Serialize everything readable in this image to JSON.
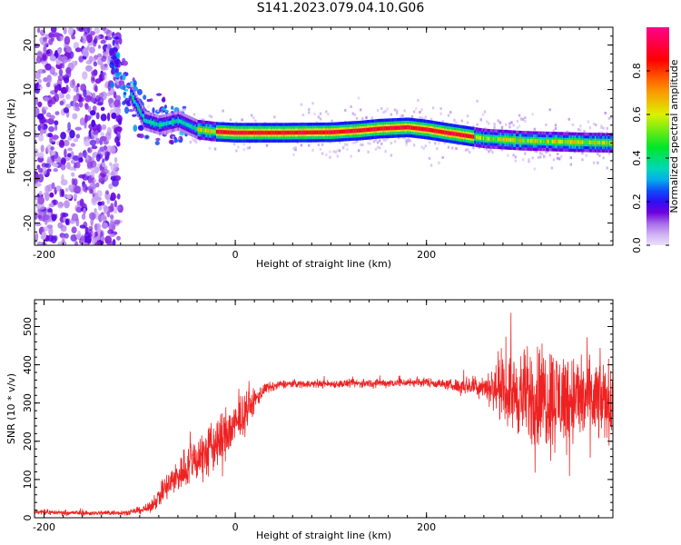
{
  "title": "S141.2023.079.04.10.G06",
  "colors": {
    "snr_line": "#ee2222",
    "axis": "#000000"
  },
  "chart_data": [
    {
      "type": "heatmap",
      "xlabel": "Height of straight line (km)",
      "ylabel": "Frequency (Hz)",
      "xlim": [
        -210,
        395
      ],
      "ylim": [
        -25,
        24
      ],
      "xticks": [
        -200,
        0,
        200
      ],
      "yticks": [
        -20,
        -10,
        0,
        10,
        20
      ],
      "colorbar": {
        "label": "Normalized spectral amplitude",
        "range": [
          0,
          1
        ],
        "ticks": [
          0.0,
          0.2,
          0.4,
          0.6,
          0.8
        ]
      },
      "ridge": [
        [
          -125,
          16
        ],
        [
          -110,
          9
        ],
        [
          -95,
          3
        ],
        [
          -80,
          2
        ],
        [
          -60,
          3
        ],
        [
          -40,
          1
        ],
        [
          -20,
          0.5
        ],
        [
          0,
          0.3
        ],
        [
          50,
          0.3
        ],
        [
          100,
          0.4
        ],
        [
          130,
          0.8
        ],
        [
          150,
          1.2
        ],
        [
          180,
          1.5
        ],
        [
          200,
          1.0
        ],
        [
          220,
          0.3
        ],
        [
          260,
          -1.0
        ],
        [
          300,
          -1.5
        ],
        [
          350,
          -1.8
        ],
        [
          395,
          -2.0
        ]
      ]
    },
    {
      "type": "line",
      "xlabel": "Height of straight line (km)",
      "ylabel": "SNR (10 * v/v)",
      "xlim": [
        -210,
        395
      ],
      "ylim": [
        0,
        570
      ],
      "xticks": [
        -200,
        0,
        200
      ],
      "yticks": [
        0,
        100,
        200,
        300,
        400,
        500
      ],
      "series": [
        {
          "envelope": [
            [
              -210,
              15
            ],
            [
              -150,
              12
            ],
            [
              -110,
              14
            ],
            [
              -90,
              25
            ],
            [
              -75,
              70
            ],
            [
              -60,
              110
            ],
            [
              -45,
              150
            ],
            [
              -30,
              170
            ],
            [
              -15,
              205
            ],
            [
              0,
              240
            ],
            [
              15,
              290
            ],
            [
              30,
              335
            ],
            [
              50,
              350
            ],
            [
              100,
              350
            ],
            [
              150,
              352
            ],
            [
              200,
              355
            ],
            [
              230,
              345
            ],
            [
              260,
              345
            ],
            [
              280,
              330
            ],
            [
              300,
              320
            ],
            [
              330,
              315
            ],
            [
              360,
              310
            ],
            [
              395,
              305
            ]
          ],
          "noise": [
            [
              -210,
              8
            ],
            [
              -110,
              8
            ],
            [
              -90,
              15
            ],
            [
              -70,
              50
            ],
            [
              -50,
              70
            ],
            [
              -30,
              90
            ],
            [
              -10,
              90
            ],
            [
              10,
              60
            ],
            [
              30,
              20
            ],
            [
              50,
              12
            ],
            [
              220,
              15
            ],
            [
              260,
              40
            ],
            [
              290,
              120
            ],
            [
              320,
              180
            ],
            [
              360,
              150
            ],
            [
              395,
              120
            ]
          ]
        }
      ]
    }
  ]
}
